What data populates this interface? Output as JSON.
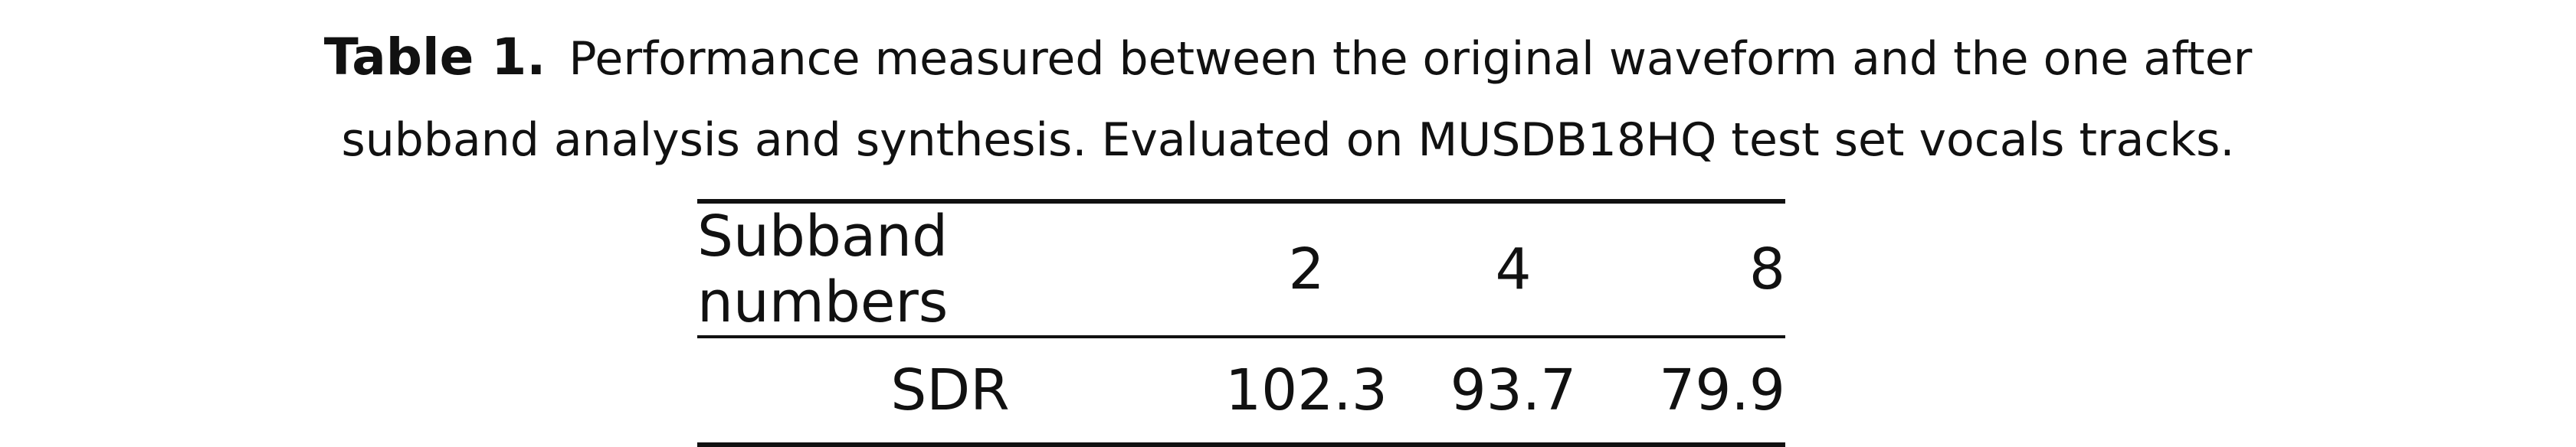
{
  "caption": {
    "label": "Table 1.",
    "line1": "Performance measured between the original waveform and the one after",
    "line2": "subband analysis and synthesis. Evaluated on MUSDB18HQ test set vocals tracks."
  },
  "table": {
    "header": [
      "Subband numbers",
      "2",
      "4",
      "8"
    ],
    "rows": [
      [
        "SDR",
        "102.3",
        "93.7",
        "79.9"
      ]
    ]
  }
}
